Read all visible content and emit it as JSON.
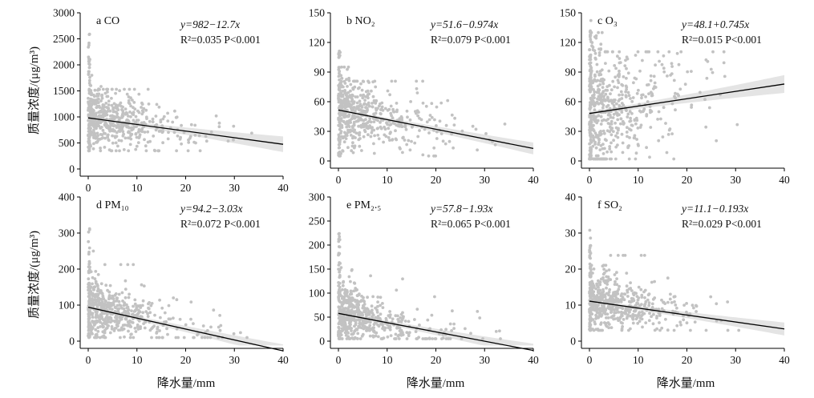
{
  "y_label": "质量浓度/(μg/m³)",
  "x_label": "降水量/mm",
  "chart_data": [
    {
      "type": "scatter",
      "panel_letter": "a",
      "pollutant_html": "CO",
      "xlim": [
        0,
        40
      ],
      "ylim": [
        0,
        3000
      ],
      "x_ticks": [
        0,
        10,
        20,
        30,
        40
      ],
      "y_ticks": [
        0,
        500,
        1000,
        1500,
        2000,
        2500,
        3000
      ],
      "fit": {
        "intercept": 982,
        "slope": -12.7
      },
      "equation": "y=982−12.7x",
      "r2": "R²=0.035",
      "p": "P<0.001",
      "cluster": {
        "zero_min": 350,
        "zero_max": 2600,
        "near_max": 1800,
        "typical_spread": 230,
        "n_zero": 60,
        "n_body": 520
      },
      "band": {
        "half_width": [
          30,
          150
        ]
      }
    },
    {
      "type": "scatter",
      "panel_letter": "b",
      "pollutant_html": "NO₂",
      "xlim": [
        0,
        40
      ],
      "ylim": [
        0,
        150
      ],
      "x_ticks": [
        0,
        10,
        20,
        30,
        40
      ],
      "y_ticks": [
        0,
        30,
        60,
        90,
        120,
        150
      ],
      "fit": {
        "intercept": 51.6,
        "slope": -0.974
      },
      "equation": "y=51.6−0.974x",
      "r2": "R²=0.079",
      "p": "P<0.001",
      "cluster": {
        "zero_min": 5,
        "zero_max": 112,
        "near_max": 95,
        "typical_spread": 15,
        "n_zero": 60,
        "n_body": 520
      },
      "band": {
        "half_width": [
          1.5,
          6
        ]
      }
    },
    {
      "type": "scatter",
      "panel_letter": "c",
      "pollutant_html": "O₃",
      "xlim": [
        0,
        40
      ],
      "ylim": [
        0,
        150
      ],
      "x_ticks": [
        0,
        10,
        20,
        30,
        40
      ],
      "y_ticks": [
        0,
        30,
        60,
        90,
        120,
        150
      ],
      "fit": {
        "intercept": 48.1,
        "slope": 0.745
      },
      "equation": "y=48.1+0.745x",
      "r2": "R²=0.015",
      "p": "P<0.001",
      "cluster": {
        "zero_min": 2,
        "zero_max": 145,
        "near_max": 130,
        "typical_spread": 28,
        "n_zero": 90,
        "n_body": 520
      },
      "band": {
        "half_width": [
          2,
          9
        ]
      }
    },
    {
      "type": "scatter",
      "panel_letter": "d",
      "pollutant_html": "PM₁₀",
      "xlim": [
        0,
        40
      ],
      "ylim": [
        0,
        400
      ],
      "x_ticks": [
        0,
        10,
        20,
        30,
        40
      ],
      "y_ticks": [
        0,
        100,
        200,
        300,
        400
      ],
      "fit": {
        "intercept": 94.2,
        "slope": -3.03
      },
      "equation": "y=94.2−3.03x",
      "r2": "R²=0.072",
      "p": "P<0.001",
      "cluster": {
        "zero_min": 10,
        "zero_max": 330,
        "near_max": 250,
        "typical_spread": 30,
        "n_zero": 60,
        "n_body": 520
      },
      "band": {
        "half_width": [
          4,
          18
        ]
      }
    },
    {
      "type": "scatter",
      "panel_letter": "e",
      "pollutant_html": "PM₂.₅",
      "xlim": [
        0,
        40
      ],
      "ylim": [
        0,
        300
      ],
      "x_ticks": [
        0,
        10,
        20,
        30,
        40
      ],
      "y_ticks": [
        0,
        50,
        100,
        150,
        200,
        250,
        300
      ],
      "fit": {
        "intercept": 57.8,
        "slope": -1.93
      },
      "equation": "y=57.8−1.93x",
      "r2": "R²=0.065",
      "p": "P<0.001",
      "cluster": {
        "zero_min": 5,
        "zero_max": 230,
        "near_max": 160,
        "typical_spread": 22,
        "n_zero": 60,
        "n_body": 520
      },
      "band": {
        "half_width": [
          3,
          14
        ]
      }
    },
    {
      "type": "scatter",
      "panel_letter": "f",
      "pollutant_html": "SO₂",
      "xlim": [
        0,
        40
      ],
      "ylim": [
        0,
        40
      ],
      "x_ticks": [
        0,
        10,
        20,
        30,
        40
      ],
      "y_ticks": [
        0,
        10,
        20,
        30,
        40
      ],
      "fit": {
        "intercept": 11.1,
        "slope": -0.193
      },
      "equation": "y=11.1−0.193x",
      "r2": "R²=0.029",
      "p": "P<0.001",
      "cluster": {
        "zero_min": 3,
        "zero_max": 33,
        "near_max": 28,
        "typical_spread": 3,
        "n_zero": 60,
        "n_body": 520
      },
      "band": {
        "half_width": [
          0.4,
          1.8
        ]
      }
    }
  ],
  "colors": {
    "points": "#c2c2c2",
    "band": "#e4e4e4",
    "line": "#000000",
    "axis": "#000000"
  }
}
